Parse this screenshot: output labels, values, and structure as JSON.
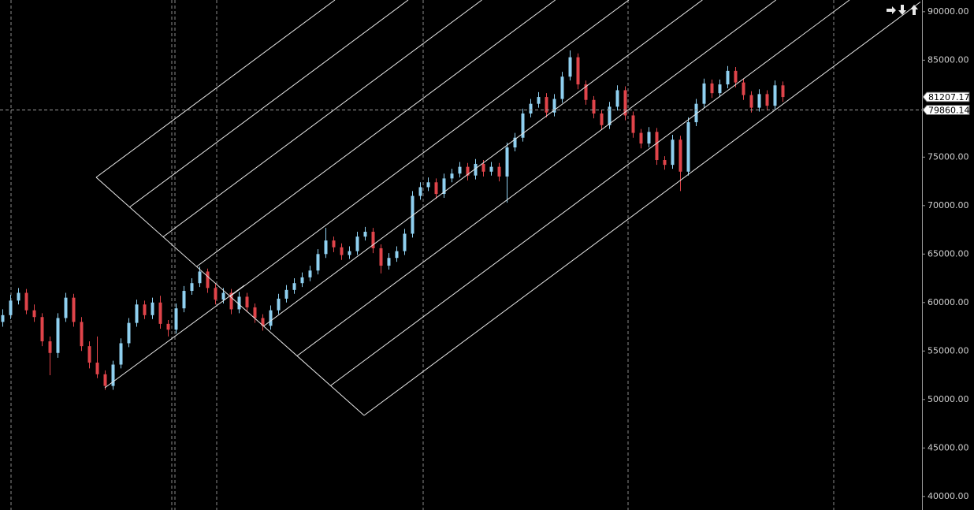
{
  "chart_data": {
    "type": "candlestick",
    "up_color": "#8fd0f0",
    "down_color": "#e0444a",
    "ylim": [
      38600,
      90800
    ],
    "yticks": [
      {
        "value": 40000,
        "label": "40000.00"
      },
      {
        "value": 45000,
        "label": "45000.00"
      },
      {
        "value": 50000,
        "label": "50000.00"
      },
      {
        "value": 55000,
        "label": "55000.00"
      },
      {
        "value": 60000,
        "label": "60000.00"
      },
      {
        "value": 65000,
        "label": "65000.00"
      },
      {
        "value": 70000,
        "label": "70000.00"
      },
      {
        "value": 75000,
        "label": "75000.00"
      },
      {
        "value": 80000,
        "label": "80000.00"
      },
      {
        "value": 85000,
        "label": "85000.00"
      },
      {
        "value": 90000,
        "label": "90000.00"
      }
    ],
    "price_labels": [
      81207.17,
      79860.14
    ],
    "candles": [
      [
        58000,
        59300,
        57500,
        58700
      ],
      [
        58700,
        60800,
        58300,
        60200
      ],
      [
        60200,
        61500,
        59800,
        61000
      ],
      [
        61000,
        61400,
        58800,
        59200
      ],
      [
        59200,
        59800,
        58000,
        58500
      ],
      [
        58500,
        58900,
        55500,
        56000
      ],
      [
        56000,
        56500,
        52500,
        54800
      ],
      [
        54800,
        58900,
        54300,
        58400
      ],
      [
        58400,
        61000,
        58000,
        60500
      ],
      [
        60500,
        60900,
        57500,
        58000
      ],
      [
        58000,
        58500,
        55000,
        55500
      ],
      [
        55500,
        56000,
        53200,
        53800
      ],
      [
        53800,
        56500,
        52200,
        52600
      ],
      [
        52600,
        53000,
        51000,
        51400
      ],
      [
        51400,
        54000,
        51000,
        53600
      ],
      [
        53600,
        56300,
        53200,
        55800
      ],
      [
        55800,
        58400,
        55400,
        57900
      ],
      [
        57900,
        60300,
        57500,
        59800
      ],
      [
        59800,
        60200,
        58300,
        58700
      ],
      [
        58700,
        60500,
        58300,
        60000
      ],
      [
        60000,
        60700,
        57300,
        57800
      ],
      [
        57800,
        58200,
        56500,
        57200
      ],
      [
        57200,
        59900,
        56800,
        59400
      ],
      [
        59400,
        61700,
        59000,
        61200
      ],
      [
        61200,
        62500,
        60800,
        62000
      ],
      [
        62000,
        63700,
        61600,
        63200
      ],
      [
        63200,
        63500,
        61000,
        61500
      ],
      [
        61500,
        61900,
        59800,
        60300
      ],
      [
        60300,
        61500,
        59900,
        61000
      ],
      [
        61000,
        61400,
        58800,
        59300
      ],
      [
        59300,
        61100,
        58900,
        60600
      ],
      [
        60600,
        61000,
        59000,
        59500
      ],
      [
        59500,
        59900,
        57900,
        58400
      ],
      [
        58400,
        58800,
        57100,
        57600
      ],
      [
        57600,
        59700,
        57200,
        59200
      ],
      [
        59200,
        60900,
        58800,
        60400
      ],
      [
        60400,
        61800,
        60000,
        61300
      ],
      [
        61300,
        62500,
        60900,
        62000
      ],
      [
        62000,
        63100,
        61600,
        62600
      ],
      [
        62600,
        63800,
        62200,
        63300
      ],
      [
        63300,
        65500,
        62900,
        65000
      ],
      [
        65000,
        67700,
        64600,
        66400
      ],
      [
        66400,
        66800,
        65200,
        65700
      ],
      [
        65700,
        66100,
        64400,
        64900
      ],
      [
        64900,
        65800,
        64500,
        65300
      ],
      [
        65300,
        67300,
        64900,
        66800
      ],
      [
        66800,
        67800,
        66400,
        67300
      ],
      [
        67300,
        67700,
        65100,
        65600
      ],
      [
        65600,
        66000,
        63000,
        63800
      ],
      [
        63800,
        65100,
        63400,
        64600
      ],
      [
        64600,
        65800,
        64200,
        65300
      ],
      [
        65300,
        67600,
        64900,
        67100
      ],
      [
        67100,
        71500,
        66700,
        71000
      ],
      [
        71000,
        72400,
        70600,
        71900
      ],
      [
        71900,
        72900,
        71500,
        72400
      ],
      [
        72400,
        72800,
        70700,
        71200
      ],
      [
        71200,
        73300,
        70800,
        72800
      ],
      [
        72800,
        73800,
        72400,
        73300
      ],
      [
        73300,
        74500,
        72900,
        74000
      ],
      [
        74000,
        74400,
        72600,
        73100
      ],
      [
        73100,
        74800,
        72700,
        74300
      ],
      [
        74300,
        74700,
        73000,
        73500
      ],
      [
        73500,
        74500,
        73100,
        74000
      ],
      [
        74000,
        74400,
        72500,
        73000
      ],
      [
        73000,
        76500,
        70300,
        76000
      ],
      [
        76000,
        77500,
        75600,
        77000
      ],
      [
        77000,
        80000,
        76600,
        79500
      ],
      [
        79500,
        81000,
        79100,
        80500
      ],
      [
        80500,
        81700,
        80100,
        81200
      ],
      [
        81200,
        81600,
        79100,
        79600
      ],
      [
        79600,
        81500,
        79200,
        81000
      ],
      [
        81000,
        83800,
        80600,
        83300
      ],
      [
        83300,
        86000,
        82900,
        85300
      ],
      [
        85300,
        85700,
        82000,
        82500
      ],
      [
        82500,
        82900,
        80400,
        80900
      ],
      [
        80900,
        81300,
        79000,
        79500
      ],
      [
        79500,
        79900,
        77800,
        78300
      ],
      [
        78300,
        80700,
        77900,
        80200
      ],
      [
        80200,
        82400,
        79800,
        81900
      ],
      [
        81900,
        82300,
        78800,
        79300
      ],
      [
        79300,
        79700,
        77000,
        77500
      ],
      [
        77500,
        77900,
        75900,
        76400
      ],
      [
        76400,
        78100,
        76000,
        77600
      ],
      [
        77600,
        78000,
        74200,
        74700
      ],
      [
        74700,
        75100,
        73700,
        74200
      ],
      [
        74200,
        77300,
        73800,
        76800
      ],
      [
        76800,
        77200,
        71500,
        73500
      ],
      [
        73500,
        79100,
        73100,
        78600
      ],
      [
        78600,
        81000,
        78200,
        80500
      ],
      [
        80500,
        83100,
        80100,
        82600
      ],
      [
        82600,
        83000,
        81100,
        81600
      ],
      [
        81600,
        83000,
        81200,
        82500
      ],
      [
        82500,
        84400,
        82100,
        83900
      ],
      [
        83900,
        84300,
        82200,
        82700
      ],
      [
        82700,
        83100,
        80900,
        81400
      ],
      [
        81400,
        81800,
        79600,
        80100
      ],
      [
        80100,
        82000,
        79700,
        81500
      ],
      [
        81500,
        81900,
        79800,
        80300
      ],
      [
        80300,
        82900,
        79900,
        82400
      ],
      [
        82400,
        82800,
        80700,
        81200
      ]
    ]
  }
}
